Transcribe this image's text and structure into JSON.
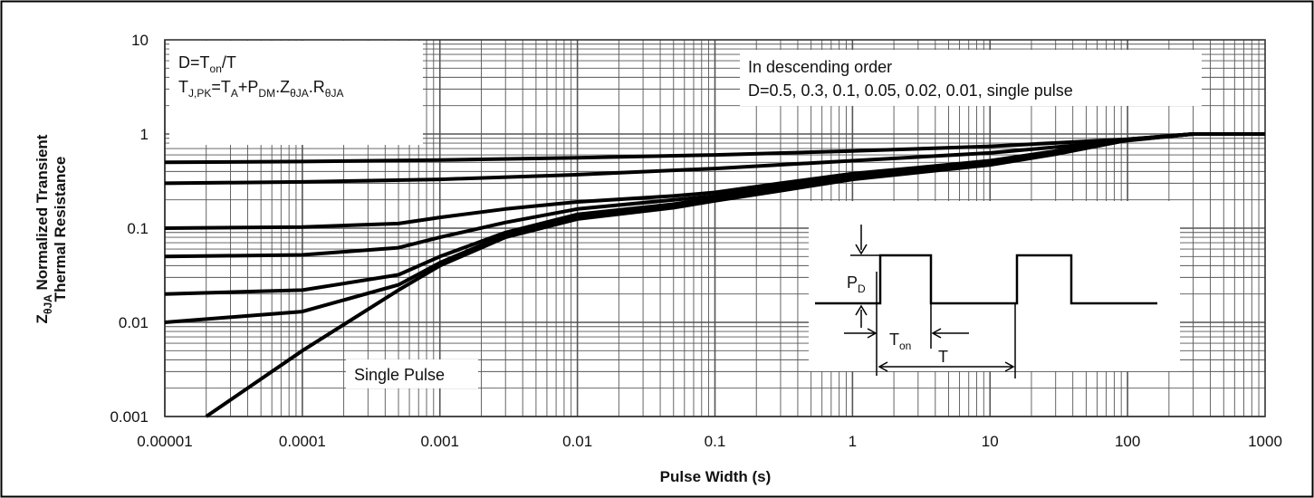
{
  "chart_data": {
    "type": "line",
    "xscale": "log",
    "yscale": "log",
    "xlim": [
      1e-05,
      1000
    ],
    "ylim": [
      0.001,
      10
    ],
    "grid": true,
    "xlabel": "Pulse Width (s)",
    "ylabel_parts": {
      "z": "Z",
      "z_sub": "θJA",
      "line1_rest": " Normalized Transient",
      "line2": "Thermal Resistance"
    },
    "x_ticks": [
      {
        "value": 1e-05,
        "label": "0.00001"
      },
      {
        "value": 0.0001,
        "label": "0.0001"
      },
      {
        "value": 0.001,
        "label": "0.001"
      },
      {
        "value": 0.01,
        "label": "0.01"
      },
      {
        "value": 0.1,
        "label": "0.1"
      },
      {
        "value": 1,
        "label": "1"
      },
      {
        "value": 10,
        "label": "10"
      },
      {
        "value": 100,
        "label": "100"
      },
      {
        "value": 1000,
        "label": "1000"
      }
    ],
    "y_ticks": [
      {
        "value": 10,
        "label": "10"
      },
      {
        "value": 1,
        "label": "1"
      },
      {
        "value": 0.1,
        "label": "0.1"
      },
      {
        "value": 0.01,
        "label": "0.01"
      },
      {
        "value": 0.001,
        "label": "0.001"
      }
    ],
    "annotations": {
      "formula_box": {
        "line1": {
          "a": "D=T",
          "a_sub": "on",
          "b": "/T"
        },
        "line2": [
          {
            "t": "T",
            "s": "J,PK"
          },
          {
            "t": "=T",
            "s": "A"
          },
          {
            "t": "+P",
            "s": "DM"
          },
          {
            "t": ".Z",
            "s": "θJA"
          },
          {
            "t": ".R",
            "s": "θJA"
          }
        ]
      },
      "order_line1": "In descending order",
      "order_line2": "D=0.5, 0.3, 0.1, 0.05, 0.02, 0.01, single pulse",
      "single_pulse_label": "Single Pulse",
      "inset": {
        "pdm_t": "P",
        "pdm_s": "D",
        "ton_t": "T",
        "ton_s": "on",
        "t_label": "T"
      }
    },
    "series": [
      {
        "duty": 0.5,
        "x": [
          1e-05,
          0.0001,
          0.001,
          0.01,
          0.1,
          1,
          10,
          100,
          300,
          1000
        ],
        "y": [
          0.5,
          0.51,
          0.53,
          0.56,
          0.6,
          0.66,
          0.74,
          0.88,
          1.0,
          1.0
        ]
      },
      {
        "duty": 0.3,
        "x": [
          1e-05,
          0.0001,
          0.001,
          0.01,
          0.1,
          1,
          10,
          100,
          300,
          1000
        ],
        "y": [
          0.3,
          0.31,
          0.33,
          0.37,
          0.43,
          0.52,
          0.63,
          0.85,
          1.0,
          1.0
        ]
      },
      {
        "duty": 0.1,
        "x": [
          1e-05,
          0.0001,
          0.0005,
          0.001,
          0.003,
          0.01,
          0.05,
          0.1,
          0.3,
          1,
          3,
          10,
          30,
          100,
          300,
          1000
        ],
        "y": [
          0.1,
          0.103,
          0.112,
          0.13,
          0.16,
          0.19,
          0.22,
          0.24,
          0.3,
          0.38,
          0.44,
          0.52,
          0.66,
          0.88,
          1.0,
          1.0
        ]
      },
      {
        "duty": 0.05,
        "x": [
          1e-05,
          0.0001,
          0.0005,
          0.001,
          0.003,
          0.01,
          0.05,
          0.1,
          0.3,
          1,
          3,
          10,
          30,
          100,
          300,
          1000
        ],
        "y": [
          0.05,
          0.052,
          0.062,
          0.08,
          0.115,
          0.16,
          0.2,
          0.22,
          0.28,
          0.36,
          0.42,
          0.5,
          0.64,
          0.87,
          1.0,
          1.0
        ]
      },
      {
        "duty": 0.02,
        "x": [
          1e-05,
          0.0001,
          0.0005,
          0.001,
          0.003,
          0.01,
          0.05,
          0.1,
          0.3,
          1,
          3,
          10,
          30,
          100,
          300,
          1000
        ],
        "y": [
          0.02,
          0.022,
          0.032,
          0.05,
          0.09,
          0.14,
          0.18,
          0.21,
          0.27,
          0.35,
          0.41,
          0.49,
          0.63,
          0.87,
          1.0,
          1.0
        ]
      },
      {
        "duty": 0.01,
        "x": [
          1e-05,
          0.0001,
          0.0005,
          0.001,
          0.003,
          0.01,
          0.05,
          0.1,
          0.3,
          1,
          3,
          10,
          30,
          100,
          300,
          1000
        ],
        "y": [
          0.01,
          0.013,
          0.025,
          0.043,
          0.085,
          0.13,
          0.17,
          0.2,
          0.26,
          0.34,
          0.4,
          0.48,
          0.62,
          0.86,
          1.0,
          1.0
        ]
      },
      {
        "duty": 0,
        "x": [
          2e-05,
          0.0001,
          0.0005,
          0.001,
          0.003,
          0.01,
          0.05,
          0.1,
          0.3,
          1,
          3,
          10,
          30,
          100,
          300,
          1000
        ],
        "y": [
          0.001,
          0.005,
          0.022,
          0.04,
          0.08,
          0.125,
          0.165,
          0.195,
          0.25,
          0.33,
          0.39,
          0.47,
          0.61,
          0.86,
          1.0,
          1.0
        ]
      }
    ]
  }
}
